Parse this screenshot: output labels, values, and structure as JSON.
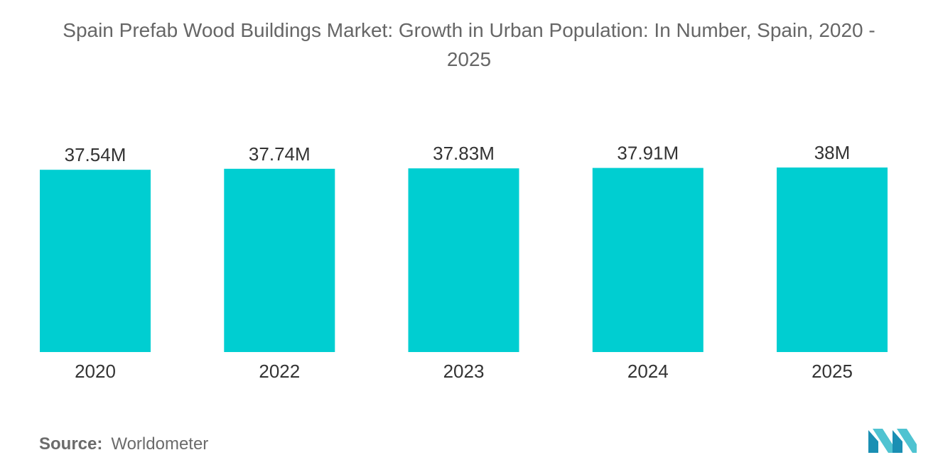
{
  "chart_data": {
    "type": "bar",
    "title_line1": "Spain Prefab Wood Buildings Market: Growth in Urban Population: In Number, Spain, 2020 -",
    "title_line2": "2025",
    "categories": [
      "2020",
      "2022",
      "2023",
      "2024",
      "2025"
    ],
    "values": [
      37.54,
      37.74,
      37.83,
      37.91,
      38.0
    ],
    "value_labels": [
      "37.54M",
      "37.74M",
      "37.83M",
      "37.91M",
      "38M"
    ],
    "unit": "M",
    "xlabel": "",
    "ylabel": "",
    "ylim": [
      0,
      38.0
    ],
    "grid": false,
    "legend": "none",
    "bar_color": "#00CED1"
  },
  "source": {
    "label": "Source:",
    "value": "Worldometer"
  },
  "logo": {
    "icon": "mordor-intelligence-logo-icon",
    "colors": [
      "#1a8fb3",
      "#4fc3d1"
    ]
  }
}
